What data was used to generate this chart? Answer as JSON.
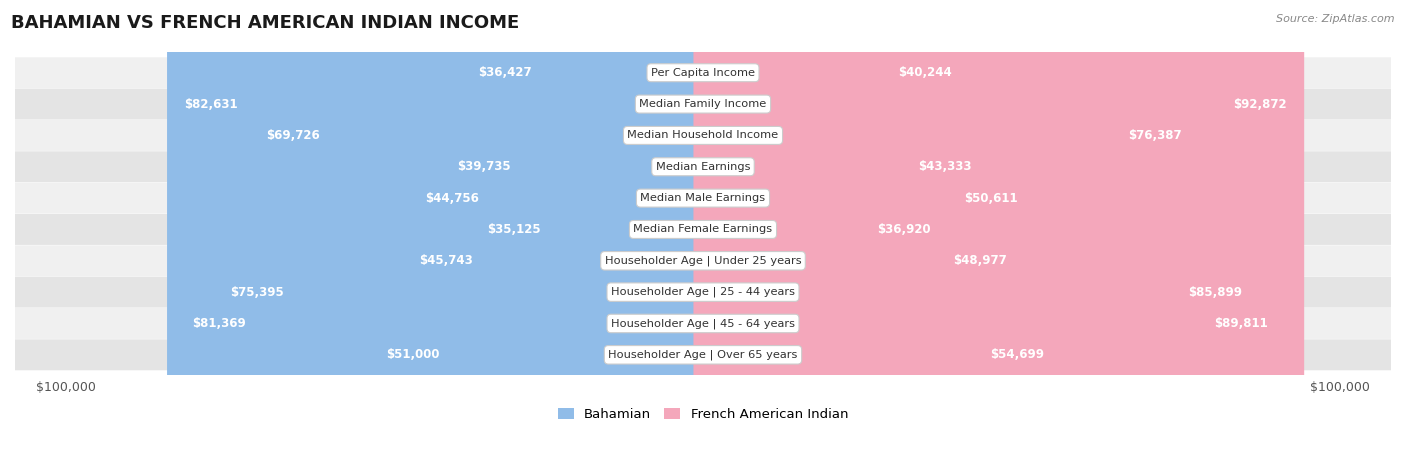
{
  "title": "BAHAMIAN VS FRENCH AMERICAN INDIAN INCOME",
  "source": "Source: ZipAtlas.com",
  "categories": [
    "Per Capita Income",
    "Median Family Income",
    "Median Household Income",
    "Median Earnings",
    "Median Male Earnings",
    "Median Female Earnings",
    "Householder Age | Under 25 years",
    "Householder Age | 25 - 44 years",
    "Householder Age | 45 - 64 years",
    "Householder Age | Over 65 years"
  ],
  "bahamian": [
    36427,
    82631,
    69726,
    39735,
    44756,
    35125,
    45743,
    75395,
    81369,
    51000
  ],
  "french_american_indian": [
    40244,
    92872,
    76387,
    43333,
    50611,
    36920,
    48977,
    85899,
    89811,
    54699
  ],
  "max_value": 100000,
  "bahamian_color": "#90bce8",
  "bahamian_color_deep": "#5b9bd5",
  "french_color": "#f4a7bb",
  "french_color_deep": "#e8668a",
  "label_white": "#ffffff",
  "label_dark": "#555555",
  "bg_color": "#ffffff",
  "row_bg_light": "#f0f0f0",
  "row_bg_mid": "#e4e4e4",
  "title_fontsize": 13,
  "label_fontsize": 8.5,
  "category_fontsize": 8.2,
  "legend_fontsize": 9.5,
  "axis_label_fontsize": 9
}
